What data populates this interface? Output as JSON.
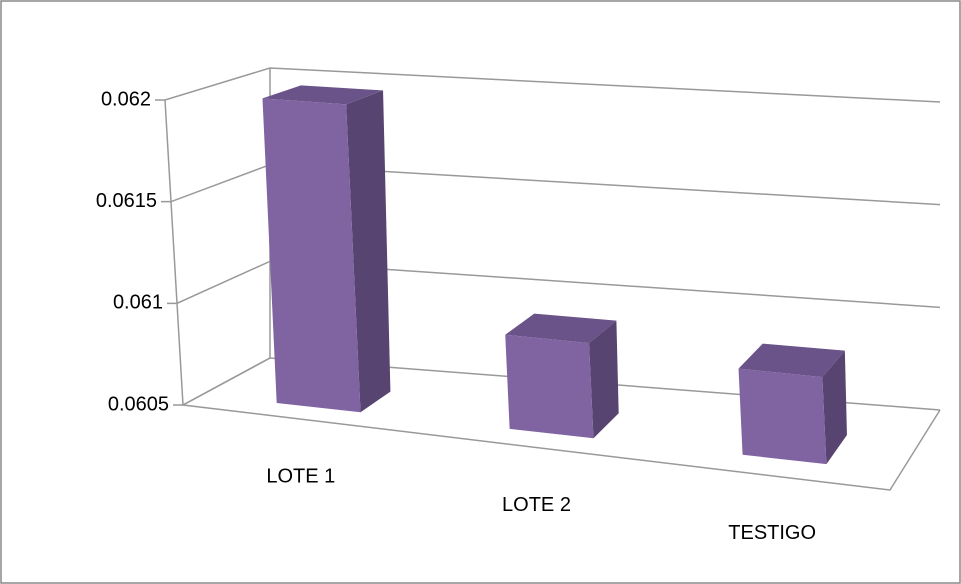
{
  "chart_data": {
    "type": "bar3d",
    "categories": [
      "LOTE 1",
      "LOTE 2",
      "TESTIGO"
    ],
    "values": [
      0.062,
      0.06095,
      0.0609
    ],
    "color": "#8064a2",
    "ylim": [
      0.0605,
      0.062
    ],
    "yticks": [
      0.0605,
      0.061,
      0.0615,
      0.062
    ],
    "grid": true
  }
}
